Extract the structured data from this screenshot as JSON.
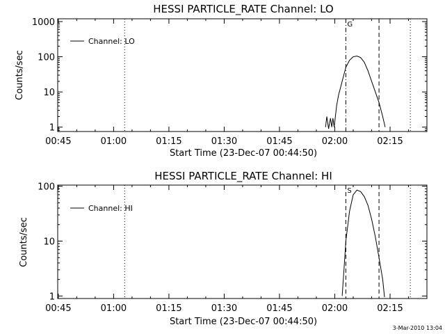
{
  "chart_data": [
    {
      "type": "line",
      "title": "HESSI PARTICLE_RATE Channel: LO",
      "xlabel": "Start Time (23-Dec-07 00:44:50)",
      "ylabel": "Counts/sec",
      "x_ticks": [
        "00:45",
        "01:00",
        "01:15",
        "01:30",
        "01:45",
        "02:00",
        "02:15"
      ],
      "x_range": [
        "00:44:50",
        "02:25:00"
      ],
      "y_scale": "log",
      "y_ticks": [
        "1",
        "10",
        "100",
        "1000"
      ],
      "ylim": [
        0.75,
        1200
      ],
      "legend": {
        "label": "Channel: LO",
        "position": "top-left"
      },
      "series": [
        {
          "name": "Channel: LO",
          "x": [
            "01:57:30",
            "01:57:50",
            "01:58:20",
            "01:58:50",
            "01:59:10",
            "01:59:30",
            "01:59:50",
            "02:00:30",
            "02:01:00",
            "02:02:00",
            "02:03:00",
            "02:04:00",
            "02:05:00",
            "02:06:00",
            "02:07:00",
            "02:08:00",
            "02:09:00",
            "02:10:00",
            "02:11:00",
            "02:12:00",
            "02:13:00",
            "02:13:40"
          ],
          "y": [
            1,
            2,
            0.9,
            1.8,
            1,
            1.8,
            1,
            4,
            8,
            20,
            50,
            80,
            100,
            105,
            95,
            70,
            40,
            20,
            10,
            5,
            2,
            1
          ]
        }
      ],
      "markers": [
        {
          "x": "01:03:00",
          "style": "dotted",
          "label": ""
        },
        {
          "x": "02:03:00",
          "style": "dash-dot",
          "label": "G"
        },
        {
          "x": "02:12:00",
          "style": "dashed",
          "label": ""
        },
        {
          "x": "02:20:30",
          "style": "dotted",
          "label": ""
        }
      ]
    },
    {
      "type": "line",
      "title": "HESSI PARTICLE_RATE Channel: HI",
      "xlabel": "Start Time (23-Dec-07 00:44:50)",
      "ylabel": "Counts/sec",
      "x_ticks": [
        "00:45",
        "01:00",
        "01:15",
        "01:30",
        "01:45",
        "02:00",
        "02:15"
      ],
      "x_range": [
        "00:44:50",
        "02:25:00"
      ],
      "y_scale": "log",
      "y_ticks": [
        "1",
        "10",
        "100"
      ],
      "ylim": [
        0.9,
        105
      ],
      "legend": {
        "label": "Channel: HI",
        "position": "top-left"
      },
      "series": [
        {
          "name": "Channel: HI",
          "x": [
            "02:02:00",
            "02:02:30",
            "02:03:00",
            "02:04:00",
            "02:05:00",
            "02:06:00",
            "02:07:00",
            "02:08:00",
            "02:09:00",
            "02:10:00",
            "02:11:00",
            "02:12:00",
            "02:13:00",
            "02:13:30"
          ],
          "y": [
            1,
            3,
            10,
            35,
            70,
            85,
            80,
            65,
            45,
            25,
            12,
            5,
            2,
            0.95
          ]
        }
      ],
      "markers": [
        {
          "x": "01:03:00",
          "style": "dotted",
          "label": ""
        },
        {
          "x": "02:03:00",
          "style": "dashed",
          "label": "S"
        },
        {
          "x": "02:12:00",
          "style": "dashed",
          "label": ""
        },
        {
          "x": "02:20:30",
          "style": "dotted",
          "label": ""
        }
      ]
    }
  ],
  "footer": {
    "timestamp": "3-Mar-2010 13:04"
  }
}
